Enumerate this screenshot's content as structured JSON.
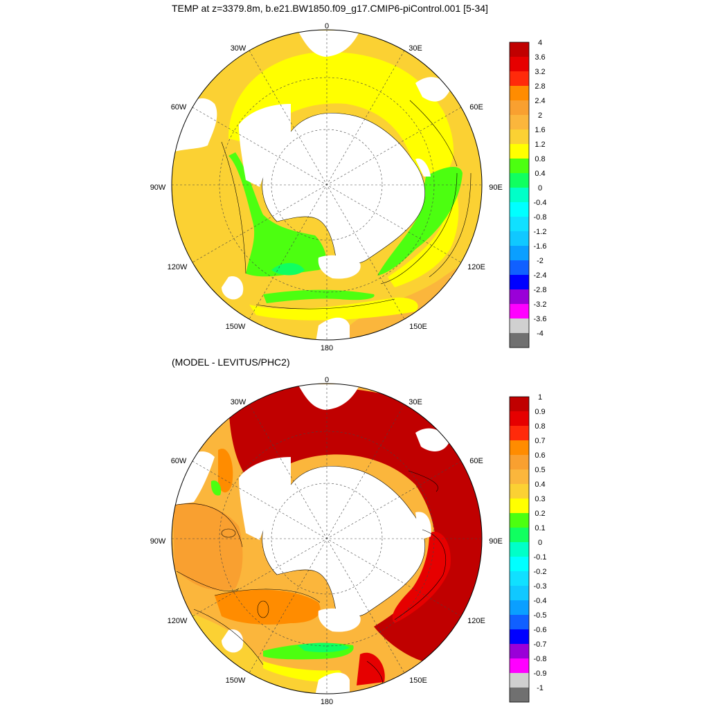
{
  "panels": [
    {
      "title": "TEMP at z=3379.8m, b.e21.BW1850.f09_g17.CMIP6-piControl.001 [5-34]",
      "lon_labels": [
        "0",
        "30E",
        "60E",
        "90E",
        "120E",
        "150E",
        "180",
        "150W",
        "120W",
        "90W",
        "60W",
        "30W"
      ],
      "colorbar": {
        "labels": [
          "4",
          "3.6",
          "3.2",
          "2.8",
          "2.4",
          "2",
          "1.6",
          "1.2",
          "0.8",
          "0.4",
          "0",
          "-0.4",
          "-0.8",
          "-1.2",
          "-1.6",
          "-2",
          "-2.4",
          "-2.8",
          "-3.2",
          "-3.6",
          "-4"
        ],
        "colors": [
          "#c00000",
          "#e60000",
          "#ff2a0a",
          "#ff8c00",
          "#f9a030",
          "#fbb63c",
          "#fbd133",
          "#ffff00",
          "#4cff10",
          "#10ff60",
          "#00ffc8",
          "#00ffff",
          "#10e0ff",
          "#10c8ff",
          "#0a9fff",
          "#1060ff",
          "#0000ff",
          "#9a00d8",
          "#ff00ff",
          "#d0d0d0",
          "#707070"
        ]
      }
    },
    {
      "title": "(MODEL - LEVITUS/PHC2)",
      "lon_labels": [
        "0",
        "30E",
        "60E",
        "90E",
        "120E",
        "150E",
        "180",
        "150W",
        "120W",
        "90W",
        "60W",
        "30W"
      ],
      "colorbar": {
        "labels": [
          "1",
          "0.9",
          "0.8",
          "0.7",
          "0.6",
          "0.5",
          "0.4",
          "0.3",
          "0.2",
          "0.1",
          "0",
          "-0.1",
          "-0.2",
          "-0.3",
          "-0.4",
          "-0.5",
          "-0.6",
          "-0.7",
          "-0.8",
          "-0.9",
          "-1"
        ],
        "colors": [
          "#c00000",
          "#e60000",
          "#ff2a0a",
          "#ff8c00",
          "#f9a030",
          "#fbb63c",
          "#fbd133",
          "#ffff00",
          "#4cff10",
          "#10ff60",
          "#00ffc8",
          "#00ffff",
          "#10e0ff",
          "#10c8ff",
          "#0a9fff",
          "#1060ff",
          "#0000ff",
          "#9a00d8",
          "#ff00ff",
          "#d0d0d0",
          "#707070"
        ]
      }
    }
  ]
}
